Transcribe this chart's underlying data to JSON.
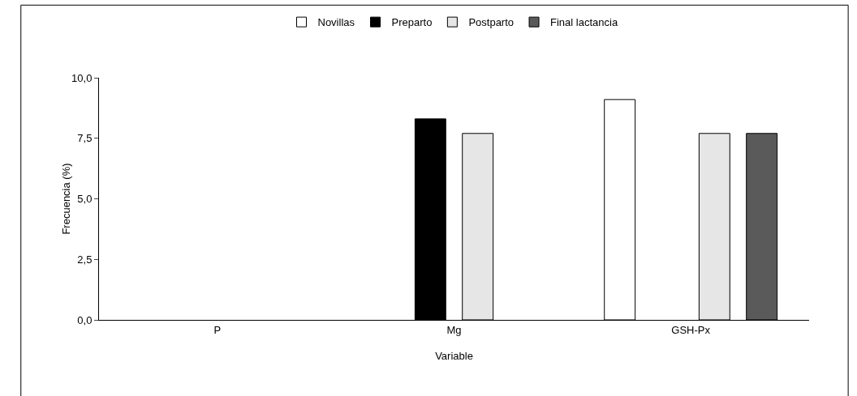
{
  "chart_data": {
    "type": "bar",
    "xlabel": "Variable",
    "ylabel": "Frecuencia (%)",
    "categories": [
      "P",
      "Mg",
      "GSH-Px"
    ],
    "series": [
      {
        "name": "Novillas",
        "color": "#ffffff",
        "values": [
          null,
          null,
          9.1
        ]
      },
      {
        "name": "Preparto",
        "color": "#000000",
        "values": [
          null,
          8.3,
          null
        ]
      },
      {
        "name": "Postparto",
        "color": "#e6e6e6",
        "values": [
          null,
          7.7,
          7.7
        ]
      },
      {
        "name": "Final lactancia",
        "color": "#5a5a5a",
        "values": [
          null,
          null,
          7.7
        ]
      }
    ],
    "ylim": [
      0,
      10
    ],
    "yticks": [
      {
        "value": 0,
        "label": "0,0"
      },
      {
        "value": 2.5,
        "label": "2,5"
      },
      {
        "value": 5,
        "label": "5,0"
      },
      {
        "value": 7.5,
        "label": "7,5"
      },
      {
        "value": 10,
        "label": "10,0"
      }
    ],
    "grid": false,
    "legend": "top"
  }
}
